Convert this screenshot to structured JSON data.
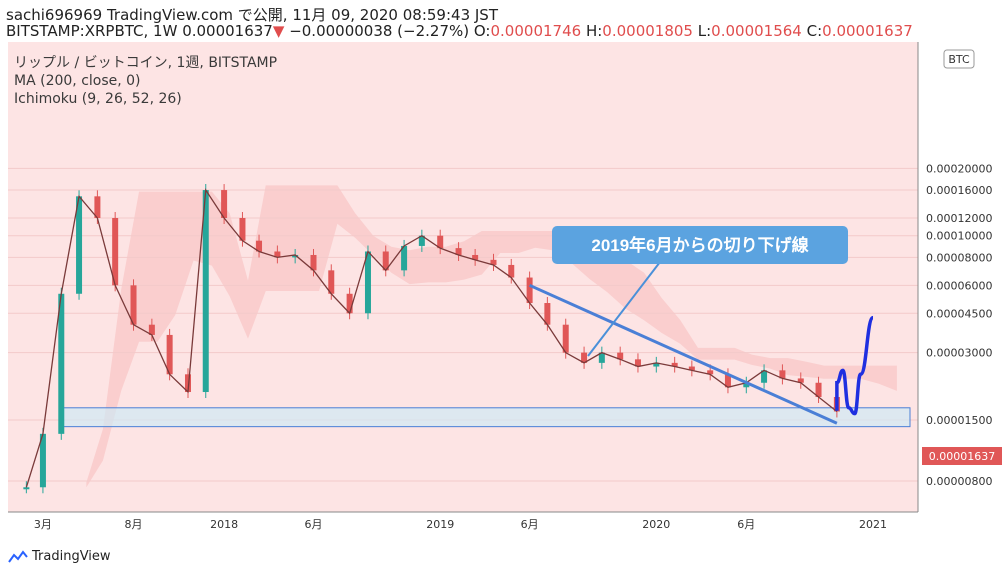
{
  "header": {
    "author_line": "sachi696969 TradingView.com で公開, 11月 09, 2020 08:59:43 JST",
    "symbol": "BITSTAMP:XRPBTC, 1W",
    "last": "0.00001637",
    "change_arrow": "▼",
    "change": "−0.00000038 (−2.27%)",
    "o_label": "O:",
    "o": "0.00001746",
    "h_label": "H:",
    "h": "0.00001805",
    "l_label": "L:",
    "l": "0.00001564",
    "c_label": "C:",
    "c": "0.00001637"
  },
  "legend": {
    "pair": "リップル / ビットコイン, 1週, BITSTAMP",
    "ma": "MA (200, close, 0)",
    "ichimoku": "Ichimoku (9, 26, 52, 26)"
  },
  "annotation": {
    "text": "2019年6月からの切り下げ線"
  },
  "footer": {
    "brand": "TradingView"
  },
  "colors": {
    "bg": "#fde4e4",
    "up": "#26a69a",
    "down": "#e05757",
    "trend": "#4a7fd6",
    "forecast": "#1f2fe0",
    "kumo": "#f7b8b8"
  },
  "chart_data": {
    "type": "line",
    "title": "",
    "currency_badge": "BTC",
    "price_label": "0.00001637",
    "y_scale": "log",
    "y_ticks": [
      "0.00000800",
      "0.00001500",
      "0.00003000",
      "0.00004500",
      "0.00006000",
      "0.00008000",
      "0.00010000",
      "0.00012000",
      "0.00016000",
      "0.00020000"
    ],
    "x_ticks": [
      "3月",
      "8月",
      "2018",
      "6月",
      "2019",
      "6月",
      "2020",
      "6月",
      "2021"
    ],
    "close_series": [
      {
        "date": "2017-02",
        "close": 7.5e-06
      },
      {
        "date": "2017-03",
        "close": 1.3e-05
      },
      {
        "date": "2017-04",
        "close": 5.5e-05
      },
      {
        "date": "2017-05",
        "close": 0.00015
      },
      {
        "date": "2017-06",
        "close": 0.00012
      },
      {
        "date": "2017-07",
        "close": 6e-05
      },
      {
        "date": "2017-08",
        "close": 4e-05
      },
      {
        "date": "2017-09",
        "close": 3.6e-05
      },
      {
        "date": "2017-10",
        "close": 2.4e-05
      },
      {
        "date": "2017-11",
        "close": 2e-05
      },
      {
        "date": "2017-12",
        "close": 0.00016
      },
      {
        "date": "2018-01",
        "close": 0.00012
      },
      {
        "date": "2018-02",
        "close": 9.5e-05
      },
      {
        "date": "2018-03",
        "close": 8.5e-05
      },
      {
        "date": "2018-04",
        "close": 8e-05
      },
      {
        "date": "2018-05",
        "close": 8.2e-05
      },
      {
        "date": "2018-06",
        "close": 7e-05
      },
      {
        "date": "2018-07",
        "close": 5.5e-05
      },
      {
        "date": "2018-08",
        "close": 4.5e-05
      },
      {
        "date": "2018-09",
        "close": 8.5e-05
      },
      {
        "date": "2018-10",
        "close": 7e-05
      },
      {
        "date": "2018-11",
        "close": 9e-05
      },
      {
        "date": "2018-12",
        "close": 0.0001
      },
      {
        "date": "2019-01",
        "close": 8.8e-05
      },
      {
        "date": "2019-02",
        "close": 8.2e-05
      },
      {
        "date": "2019-03",
        "close": 7.8e-05
      },
      {
        "date": "2019-04",
        "close": 7.4e-05
      },
      {
        "date": "2019-05",
        "close": 6.5e-05
      },
      {
        "date": "2019-06",
        "close": 5e-05
      },
      {
        "date": "2019-07",
        "close": 4e-05
      },
      {
        "date": "2019-08",
        "close": 3e-05
      },
      {
        "date": "2019-09",
        "close": 2.7e-05
      },
      {
        "date": "2019-10",
        "close": 3e-05
      },
      {
        "date": "2019-11",
        "close": 2.8e-05
      },
      {
        "date": "2019-12",
        "close": 2.6e-05
      },
      {
        "date": "2020-01",
        "close": 2.7e-05
      },
      {
        "date": "2020-02",
        "close": 2.6e-05
      },
      {
        "date": "2020-03",
        "close": 2.5e-05
      },
      {
        "date": "2020-04",
        "close": 2.4e-05
      },
      {
        "date": "2020-05",
        "close": 2.1e-05
      },
      {
        "date": "2020-06",
        "close": 2.2e-05
      },
      {
        "date": "2020-07",
        "close": 2.5e-05
      },
      {
        "date": "2020-08",
        "close": 2.3e-05
      },
      {
        "date": "2020-09",
        "close": 2.2e-05
      },
      {
        "date": "2020-10",
        "close": 1.9e-05
      },
      {
        "date": "2020-11",
        "close": 1.637e-05
      }
    ],
    "trendline": [
      {
        "date": "2019-06",
        "value": 6e-05
      },
      {
        "date": "2020-11",
        "value": 1.45e-05
      }
    ],
    "support_zone": [
      1.4e-05,
      1.7e-05
    ],
    "forecast_path": [
      {
        "date": "2020-11",
        "value": 1.65e-05
      },
      {
        "date": "2020-11-15",
        "value": 2.2e-05
      },
      {
        "date": "2020-11-25",
        "value": 2.5e-05
      },
      {
        "date": "2020-12-05",
        "value": 1.7e-05
      },
      {
        "date": "2020-12-15",
        "value": 1.6e-05
      },
      {
        "date": "2020-12-25",
        "value": 2.4e-05
      },
      {
        "date": "2021-01",
        "value": 4.3e-05
      }
    ]
  }
}
